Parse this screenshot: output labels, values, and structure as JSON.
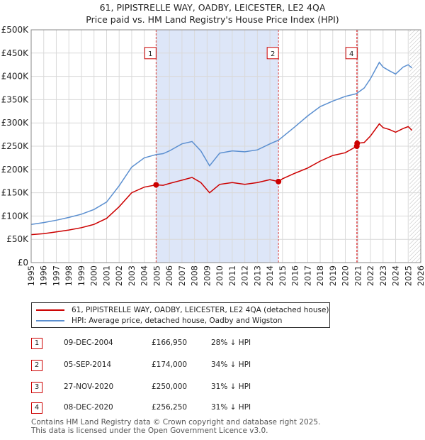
{
  "title_line1": "61, PIPISTRELLE WAY, OADBY, LEICESTER, LE2 4QA",
  "title_line2": "Price paid vs. HM Land Registry's House Price Index (HPI)",
  "legend": {
    "property_label": "61, PIPISTRELLE WAY, OADBY, LEICESTER, LE2 4QA (detached house)",
    "hpi_label": "HPI: Average price, detached house, Oadby and Wigston"
  },
  "colors": {
    "property": "#cc0000",
    "hpi": "#5b8fd0",
    "shade": "#dde6f8",
    "marker_border": "#cc0000"
  },
  "transactions": [
    {
      "num": "1",
      "date": "09-DEC-2004",
      "price": "£166,950",
      "hpi_diff": "28% ↓ HPI"
    },
    {
      "num": "2",
      "date": "05-SEP-2014",
      "price": "£174,000",
      "hpi_diff": "34% ↓ HPI"
    },
    {
      "num": "3",
      "date": "27-NOV-2020",
      "price": "£250,000",
      "hpi_diff": "31% ↓ HPI"
    },
    {
      "num": "4",
      "date": "08-DEC-2020",
      "price": "£256,250",
      "hpi_diff": "31% ↓ HPI"
    }
  ],
  "footer_line1": "Contains HM Land Registry data © Crown copyright and database right 2025.",
  "footer_line2": "This data is licensed under the Open Government Licence v3.0.",
  "chart_data": {
    "type": "line",
    "title": "Price paid vs. HM Land Registry's House Price Index (HPI)",
    "xlabel": "",
    "ylabel": "",
    "xlim": [
      1995,
      2026
    ],
    "ylim": [
      0,
      500000
    ],
    "y_ticks": [
      0,
      50000,
      100000,
      150000,
      200000,
      250000,
      300000,
      350000,
      400000,
      450000,
      500000
    ],
    "y_tick_labels": [
      "£0",
      "£50K",
      "£100K",
      "£150K",
      "£200K",
      "£250K",
      "£300K",
      "£350K",
      "£400K",
      "£450K",
      "£500K"
    ],
    "x_ticks": [
      1995,
      1996,
      1997,
      1998,
      1999,
      2000,
      2001,
      2002,
      2003,
      2004,
      2005,
      2006,
      2007,
      2008,
      2009,
      2010,
      2011,
      2012,
      2013,
      2014,
      2015,
      2016,
      2017,
      2018,
      2019,
      2020,
      2021,
      2022,
      2023,
      2024,
      2025,
      2026
    ],
    "grid": true,
    "legend_position": "below",
    "shaded_periods": [
      [
        2004.94,
        2014.68
      ],
      [
        2020.91,
        2020.94
      ]
    ],
    "future_hatch_start": 2025.1,
    "series": [
      {
        "name": "61, PIPISTRELLE WAY, OADBY, LEICESTER, LE2 4QA (detached house)",
        "x": [
          1995,
          1996,
          1997,
          1998,
          1999,
          2000,
          2001,
          2002,
          2003,
          2004,
          2004.94,
          2005.5,
          2006,
          2007,
          2007.8,
          2008.5,
          2009.2,
          2010,
          2011,
          2012,
          2013,
          2014,
          2014.68,
          2015,
          2016,
          2017,
          2018,
          2019,
          2020,
          2020.91,
          2020.94,
          2021.5,
          2022,
          2022.7,
          2023,
          2023.5,
          2024,
          2024.6,
          2025,
          2025.3
        ],
        "values": [
          60000,
          62000,
          66000,
          70000,
          75000,
          82000,
          95000,
          120000,
          150000,
          162000,
          166950,
          166000,
          170000,
          177000,
          183000,
          172000,
          150000,
          168000,
          172000,
          168000,
          172000,
          178000,
          174000,
          180000,
          192000,
          203000,
          218000,
          230000,
          236000,
          250000,
          256250,
          258000,
          272000,
          298000,
          290000,
          286000,
          280000,
          288000,
          292000,
          284000
        ]
      },
      {
        "name": "HPI: Average price, detached house, Oadby and Wigston",
        "x": [
          1995,
          1996,
          1997,
          1998,
          1999,
          2000,
          2001,
          2002,
          2003,
          2004,
          2004.94,
          2005.5,
          2006,
          2007,
          2007.8,
          2008.5,
          2009.2,
          2010,
          2011,
          2012,
          2013,
          2014,
          2014.68,
          2015,
          2016,
          2017,
          2018,
          2019,
          2020,
          2020.91,
          2020.94,
          2021.5,
          2022,
          2022.7,
          2023,
          2023.5,
          2024,
          2024.6,
          2025,
          2025.3
        ],
        "values": [
          82000,
          86000,
          91000,
          97000,
          104000,
          114000,
          130000,
          165000,
          205000,
          225000,
          232000,
          234000,
          240000,
          255000,
          260000,
          240000,
          208000,
          235000,
          240000,
          238000,
          242000,
          255000,
          263000,
          270000,
          292000,
          315000,
          335000,
          347000,
          357000,
          363000,
          364000,
          375000,
          395000,
          430000,
          420000,
          412000,
          405000,
          420000,
          425000,
          418000
        ]
      }
    ],
    "markers": [
      {
        "label": "1",
        "x": 2004.94,
        "y": 166950,
        "box_y": 450000
      },
      {
        "label": "2",
        "x": 2014.68,
        "y": 174000,
        "box_y": 450000
      },
      {
        "label": "3",
        "x": 2020.91,
        "y": 250000,
        "box_y": null
      },
      {
        "label": "4",
        "x": 2020.94,
        "y": 256250,
        "box_y": 450000
      }
    ]
  }
}
